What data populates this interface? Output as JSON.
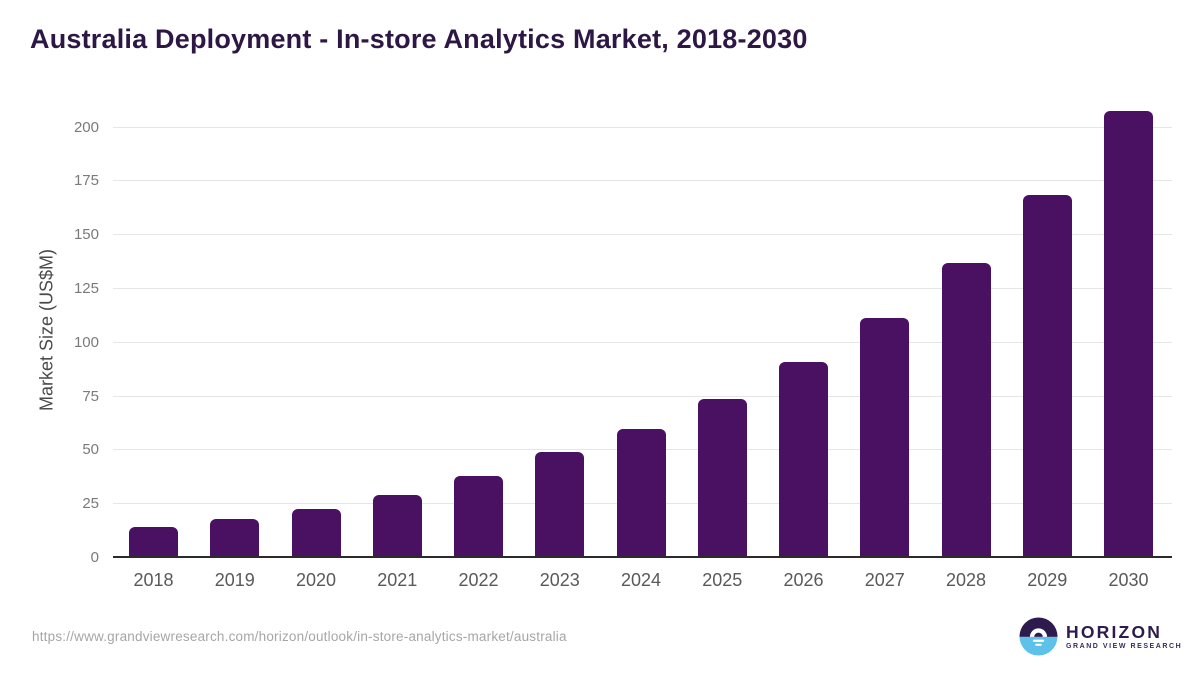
{
  "header": {
    "title": "Australia Deployment - In-store Analytics Market, 2018-2030"
  },
  "chart_data": {
    "type": "bar",
    "title": "Australia Deployment - In-store Analytics Market, 2018-2030",
    "categories": [
      "2018",
      "2019",
      "2020",
      "2021",
      "2022",
      "2023",
      "2024",
      "2025",
      "2026",
      "2027",
      "2028",
      "2029",
      "2030"
    ],
    "values": [
      14.4,
      18.1,
      22.9,
      29.4,
      38.0,
      49.1,
      59.9,
      73.9,
      91.1,
      111.5,
      137.1,
      168.7,
      207.7
    ],
    "xlabel": "",
    "ylabel": "Market Size (US$M)",
    "ylim": [
      0,
      200
    ],
    "yticks": [
      0,
      25,
      50,
      75,
      100,
      125,
      150,
      175,
      200
    ],
    "grid": true,
    "legend": false,
    "bar_color": "#4a1061"
  },
  "footer": {
    "source_url": "https://www.grandviewresearch.com/horizon/outlook/in-store-analytics-market/australia",
    "logo": {
      "brand": "HORIZON",
      "tagline": "GRAND VIEW RESEARCH"
    }
  },
  "colors": {
    "background": "#ffffff",
    "bar": "#4a1061",
    "title": "#2d1745",
    "axis_line": "#2b2b2b",
    "gridline": "#e6e6e6",
    "y_tick_label": "#7a7a7a",
    "x_tick_label": "#595959",
    "axis_title": "#4a4a4a",
    "url_text": "#a6a6a6",
    "logo_purple": "#2d1b4e",
    "logo_blue": "#5ec1ea"
  }
}
